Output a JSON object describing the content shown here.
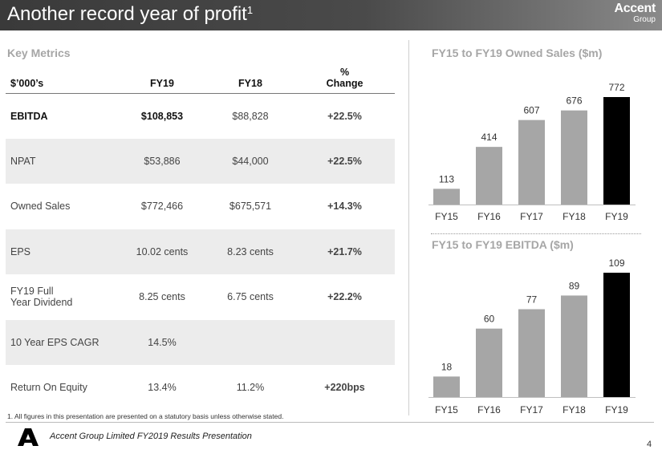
{
  "header": {
    "title": "Another record year of profit",
    "title_sup": "1",
    "logo_line1": "Accent",
    "logo_line2": "Group"
  },
  "key_metrics": {
    "title": "Key Metrics",
    "columns": [
      "$’000’s",
      "FY19",
      "FY18",
      "%",
      "Change"
    ],
    "rows": [
      {
        "label": "EBITDA",
        "label2": "",
        "fy19": "$108,853",
        "fy18": "$88,828",
        "change": "+22.5%"
      },
      {
        "label": "NPAT",
        "label2": "",
        "fy19": "$53,886",
        "fy18": "$44,000",
        "change": "+22.5%"
      },
      {
        "label": "Owned Sales",
        "label2": "",
        "fy19": "$772,466",
        "fy18": "$675,571",
        "change": "+14.3%"
      },
      {
        "label": "EPS",
        "label2": "",
        "fy19": "10.02 cents",
        "fy18": "8.23 cents",
        "change": "+21.7%"
      },
      {
        "label": "FY19 Full",
        "label2": "Year Dividend",
        "fy19": "8.25 cents",
        "fy18": "6.75 cents",
        "change": "+22.2%"
      },
      {
        "label": "10 Year EPS CAGR",
        "label2": "",
        "fy19": "14.5%",
        "fy18": "",
        "change": ""
      },
      {
        "label": "Return On Equity",
        "label2": "",
        "fy19": "13.4%",
        "fy18": "11.2%",
        "change": "+220bps"
      }
    ]
  },
  "footnote": "1. All figures in this presentation are presented on a statutory basis unless otherwise stated.",
  "footer": {
    "text": "Accent Group Limited FY2019 Results Presentation",
    "page": "4"
  },
  "colors": {
    "positive": "#2ba84a",
    "bar": "#a6a6a6",
    "highlight_bar": "#000000"
  },
  "chart_data": [
    {
      "type": "bar",
      "title": "FY15 to FY19 Owned Sales ($m)",
      "categories": [
        "FY15",
        "FY16",
        "FY17",
        "FY18",
        "FY19"
      ],
      "values": [
        113,
        414,
        607,
        676,
        772
      ],
      "labels": [
        "113",
        "414",
        "607",
        "676",
        "772"
      ],
      "ylim": [
        0,
        772
      ]
    },
    {
      "type": "bar",
      "title": "FY15 to FY19 EBITDA ($m)",
      "categories": [
        "FY15",
        "FY16",
        "FY17",
        "FY18",
        "FY19"
      ],
      "values": [
        18,
        60,
        77,
        89,
        109
      ],
      "labels": [
        "18",
        "60",
        "77",
        "89",
        "109"
      ],
      "ylim": [
        0,
        109
      ]
    }
  ]
}
